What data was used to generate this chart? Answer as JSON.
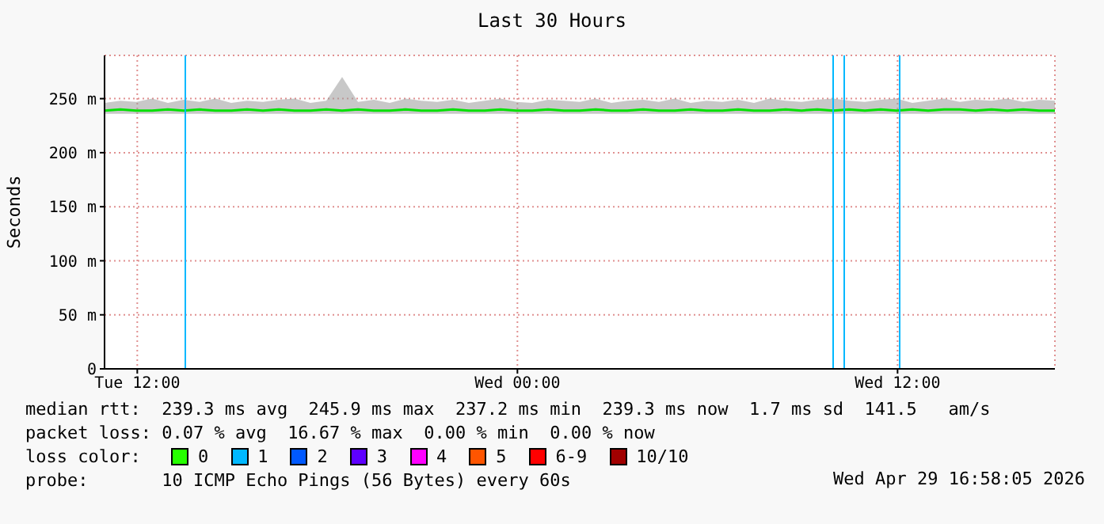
{
  "chart_data": {
    "type": "line",
    "title": "Last 30 Hours",
    "ylabel": "Seconds",
    "xlim": [
      "2026-04-28T10:58",
      "2026-04-29T16:58"
    ],
    "xticks": [
      {
        "value": "2026-04-28T12:00",
        "label": "Tue 12:00"
      },
      {
        "value": "2026-04-29T00:00",
        "label": "Wed 00:00"
      },
      {
        "value": "2026-04-29T12:00",
        "label": "Wed 12:00"
      }
    ],
    "ylim": [
      0,
      290
    ],
    "yticks": [
      {
        "value": 0,
        "label": "0"
      },
      {
        "value": 50,
        "label": "50 m"
      },
      {
        "value": 100,
        "label": "100 m"
      },
      {
        "value": 150,
        "label": "150 m"
      },
      {
        "value": 200,
        "label": "200 m"
      },
      {
        "value": 250,
        "label": "250 m"
      }
    ],
    "grid": true,
    "x": [
      "2026-04-28T10:58",
      "2026-04-28T11:28",
      "2026-04-28T11:58",
      "2026-04-28T12:28",
      "2026-04-28T12:58",
      "2026-04-28T13:28",
      "2026-04-28T13:58",
      "2026-04-28T14:28",
      "2026-04-28T14:58",
      "2026-04-28T15:28",
      "2026-04-28T15:58",
      "2026-04-28T16:28",
      "2026-04-28T16:58",
      "2026-04-28T17:28",
      "2026-04-28T17:58",
      "2026-04-28T18:28",
      "2026-04-28T18:58",
      "2026-04-28T19:28",
      "2026-04-28T19:58",
      "2026-04-28T20:28",
      "2026-04-28T20:58",
      "2026-04-28T21:28",
      "2026-04-28T21:58",
      "2026-04-28T22:28",
      "2026-04-28T22:58",
      "2026-04-28T23:28",
      "2026-04-28T23:58",
      "2026-04-29T00:28",
      "2026-04-29T00:58",
      "2026-04-29T01:28",
      "2026-04-29T01:58",
      "2026-04-29T02:28",
      "2026-04-29T02:58",
      "2026-04-29T03:28",
      "2026-04-29T03:58",
      "2026-04-29T04:28",
      "2026-04-29T04:58",
      "2026-04-29T05:28",
      "2026-04-29T05:58",
      "2026-04-29T06:28",
      "2026-04-29T06:58",
      "2026-04-29T07:28",
      "2026-04-29T07:58",
      "2026-04-29T08:28",
      "2026-04-29T08:58",
      "2026-04-29T09:28",
      "2026-04-29T09:58",
      "2026-04-29T10:28",
      "2026-04-29T10:58",
      "2026-04-29T11:28",
      "2026-04-29T11:58",
      "2026-04-29T12:28",
      "2026-04-29T12:58",
      "2026-04-29T13:28",
      "2026-04-29T13:58",
      "2026-04-29T14:28",
      "2026-04-29T14:58",
      "2026-04-29T15:28",
      "2026-04-29T15:58",
      "2026-04-29T16:28",
      "2026-04-29T16:58"
    ],
    "series": [
      {
        "color": "#00e000",
        "values": [
          239,
          240,
          239,
          239,
          240,
          239,
          240,
          239,
          239,
          240,
          239,
          240,
          239,
          239,
          240,
          239,
          240,
          239,
          239,
          240,
          239,
          239,
          240,
          239,
          239,
          240,
          239,
          239,
          240,
          239,
          239,
          240,
          239,
          239,
          240,
          239,
          239,
          240,
          239,
          239,
          240,
          239,
          239,
          240,
          239,
          240,
          239,
          240,
          239,
          240,
          239,
          240,
          239,
          240,
          240,
          239,
          240,
          239,
          240,
          239,
          239
        ],
        "lower": [
          236,
          236,
          236,
          236,
          236,
          236,
          236,
          236,
          236,
          236,
          236,
          236,
          236,
          236,
          236,
          236,
          236,
          236,
          236,
          236,
          236,
          236,
          236,
          236,
          236,
          236,
          236,
          236,
          236,
          236,
          236,
          236,
          236,
          236,
          236,
          236,
          236,
          236,
          236,
          236,
          236,
          236,
          236,
          236,
          236,
          236,
          236,
          236,
          236,
          236,
          236,
          236,
          236,
          236,
          236,
          236,
          236,
          236,
          236,
          236,
          236
        ],
        "upper": [
          246,
          248,
          247,
          250,
          246,
          249,
          247,
          250,
          246,
          248,
          247,
          249,
          250,
          246,
          248,
          270,
          247,
          249,
          246,
          250,
          248,
          247,
          249,
          246,
          248,
          250,
          247,
          246,
          249,
          248,
          247,
          250,
          246,
          248,
          249,
          247,
          250,
          246,
          248,
          247,
          249,
          246,
          250,
          248,
          247,
          249,
          250,
          248,
          247,
          249,
          250,
          246,
          248,
          250,
          247,
          249,
          248,
          250,
          247,
          249,
          248
        ]
      }
    ],
    "ref_lines": [
      {
        "axis": "x",
        "value": "2026-04-28T13:31",
        "color": "#00b8ff"
      },
      {
        "axis": "x",
        "value": "2026-04-29T09:58",
        "color": "#00b8ff"
      },
      {
        "axis": "x",
        "value": "2026-04-29T10:19",
        "color": "#00b8ff"
      },
      {
        "axis": "x",
        "value": "2026-04-29T12:04",
        "color": "#00b8ff"
      }
    ],
    "annotations": [
      "median rtt:  239.3 ms avg  245.9 ms max  237.2 ms min  239.3 ms now  1.7 ms sd  141.5   am/s",
      "packet loss: 0.07 % avg  16.67 % max  0.00 % min  0.00 % now",
      "loss color: 0 1 2 3 4 5 6-9 10/10",
      "probe:       10 ICMP Echo Pings (56 Bytes) every 60s",
      "Wed Apr 29 16:58:05 2026"
    ]
  }
}
